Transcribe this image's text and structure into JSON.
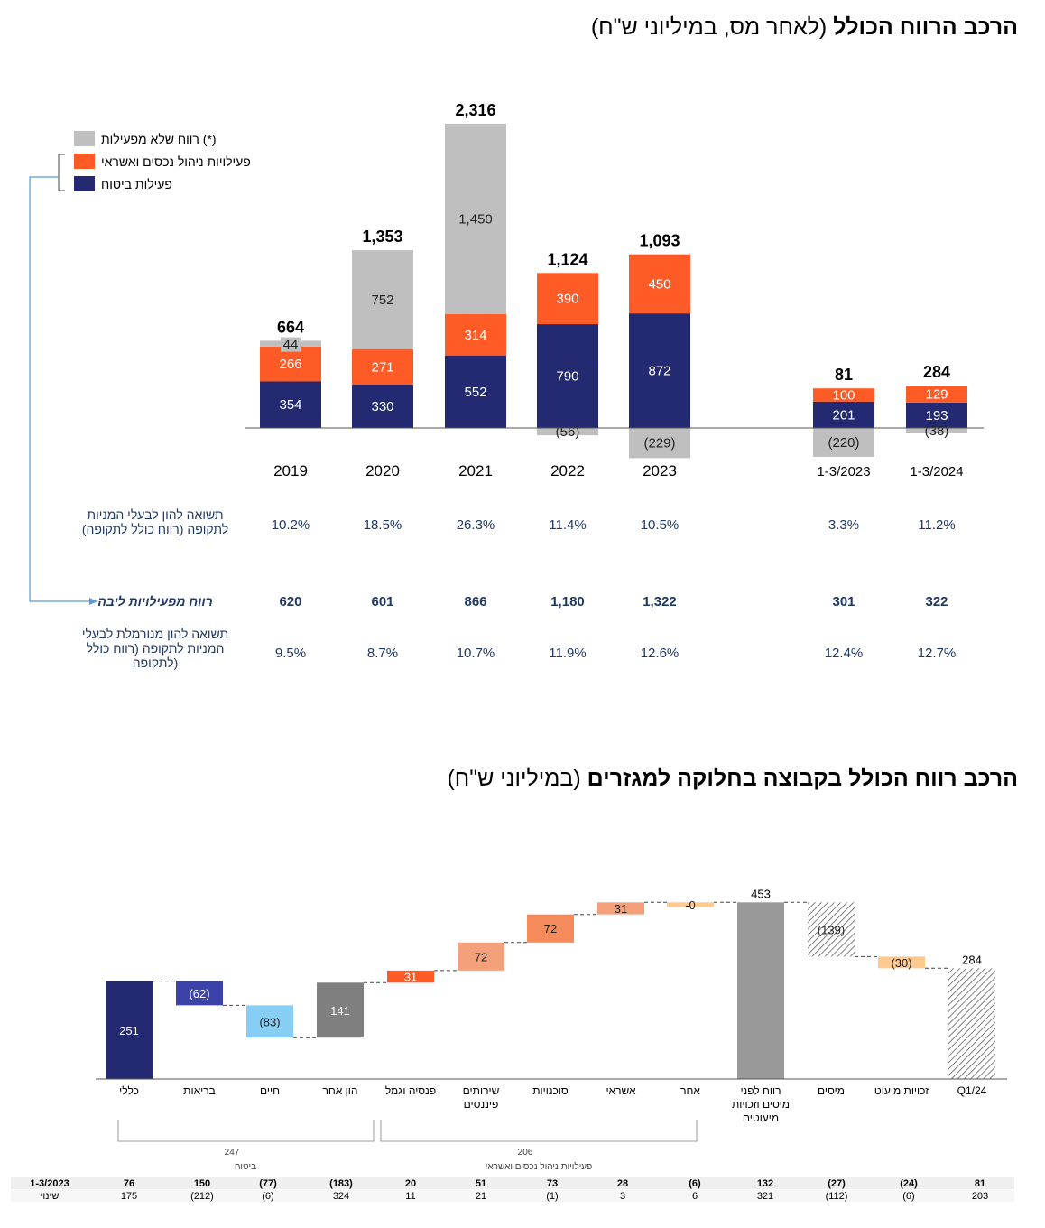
{
  "title_top": {
    "bold": "הרכב הרווח הכולל",
    "normal": "(לאחר מס, במיליוני ש\"ח)"
  },
  "title_bottom": {
    "bold": "הרכב רווח הכולל בקבוצה בחלוקה למגזרים",
    "normal": "(במיליוני ש\"ח)"
  },
  "colors": {
    "gray": "#bfbfbf",
    "orange": "#ff5b26",
    "navy": "#232a72",
    "light_blue": "#87cef5",
    "dark_gray": "#7f7f7f",
    "salmon": "#f4a07a",
    "peach": "#ffc98f",
    "bar_gray": "#999999",
    "text_blue": "#1f3864"
  },
  "chart_data": [
    {
      "type": "bar",
      "stacked": true,
      "categories": [
        "2019",
        "2020",
        "2021",
        "2022",
        "2023",
        "1-3/2023",
        "1-3/2024"
      ],
      "series": [
        {
          "name": "פעילות ביטוח",
          "color": "#232a72",
          "values": [
            354,
            330,
            552,
            790,
            872,
            201,
            193
          ],
          "labels": [
            "354",
            "330",
            "552",
            "790",
            "872",
            "201",
            "193"
          ]
        },
        {
          "name": "פעילויות ניהול נכסים ואשראי",
          "color": "#ff5b26",
          "values": [
            266,
            271,
            314,
            390,
            450,
            100,
            129
          ],
          "labels": [
            "266",
            "271",
            "314",
            "390",
            "450",
            "100",
            "129"
          ]
        },
        {
          "name": "רווח שלא מפעילות (*)",
          "color": "#bfbfbf",
          "values": [
            44,
            752,
            1450,
            -56,
            -229,
            -220,
            -38
          ],
          "labels": [
            "44",
            "752",
            "1,450",
            "(56)",
            "(229)",
            "(220)",
            "(38)"
          ]
        }
      ],
      "totals": [
        "664",
        "1,353",
        "2,316",
        "1,124",
        "1,093",
        "81",
        "284"
      ],
      "legend": [
        "רווח שלא מפעילות (*)",
        "פעילויות ניהול נכסים ואשראי",
        "פעילות ביטוח"
      ],
      "legend_placement": "top-left",
      "rows": [
        {
          "label": "תשואה להון לבעלי המניות לתקופה (רווח כולל לתקופה)",
          "values": [
            "10.2%",
            "18.5%",
            "26.3%",
            "11.4%",
            "10.5%",
            "3.3%",
            "11.2%"
          ]
        },
        {
          "label": "רווח מפעילויות ליבה",
          "values": [
            "620",
            "601",
            "866",
            "1,180",
            "1,322",
            "301",
            "322"
          ]
        },
        {
          "label": "תשואה להון מנורמלת לבעלי המניות לתקופה (רווח כולל לתקופה)",
          "values": [
            "9.5%",
            "8.7%",
            "10.7%",
            "11.9%",
            "12.6%",
            "12.4%",
            "12.7%"
          ]
        }
      ]
    },
    {
      "type": "waterfall",
      "categories": [
        "כללי",
        "בריאות",
        "חיים",
        "הון אחר",
        "פנסיה וגמל",
        "שירותים פיננסים",
        "סוכנויות",
        "אשראי",
        "אחר",
        "רווח לפני מיסים וזכויות מיעוטים",
        "מיסים",
        "זכויות מיעוט",
        "Q1/24"
      ],
      "values": [
        251,
        -62,
        -83,
        141,
        31,
        72,
        72,
        31,
        0,
        453,
        -139,
        -30,
        284
      ],
      "labels": [
        "251",
        "(62)",
        "(83)",
        "141",
        "31",
        "72",
        "72",
        "31",
        "-0",
        "453",
        "(139)",
        "(30)",
        "284"
      ],
      "groups": [
        {
          "label": "247",
          "sublabel": "ביטוח"
        },
        {
          "label": "206",
          "sublabel": "פעילויות ניהול נכסים ואשראי"
        }
      ],
      "table": [
        {
          "label": "1-3/2023",
          "values": [
            "76",
            "150",
            "(77)",
            "(183)",
            "20",
            "51",
            "73",
            "28",
            "(6)",
            "132",
            "(27)",
            "(24)",
            "81"
          ]
        },
        {
          "label": "שינוי",
          "values": [
            "175",
            "(212)",
            "(6)",
            "324",
            "11",
            "21",
            "(1)",
            "3",
            "6",
            "321",
            "(112)",
            "(6)",
            "203"
          ]
        }
      ]
    }
  ]
}
